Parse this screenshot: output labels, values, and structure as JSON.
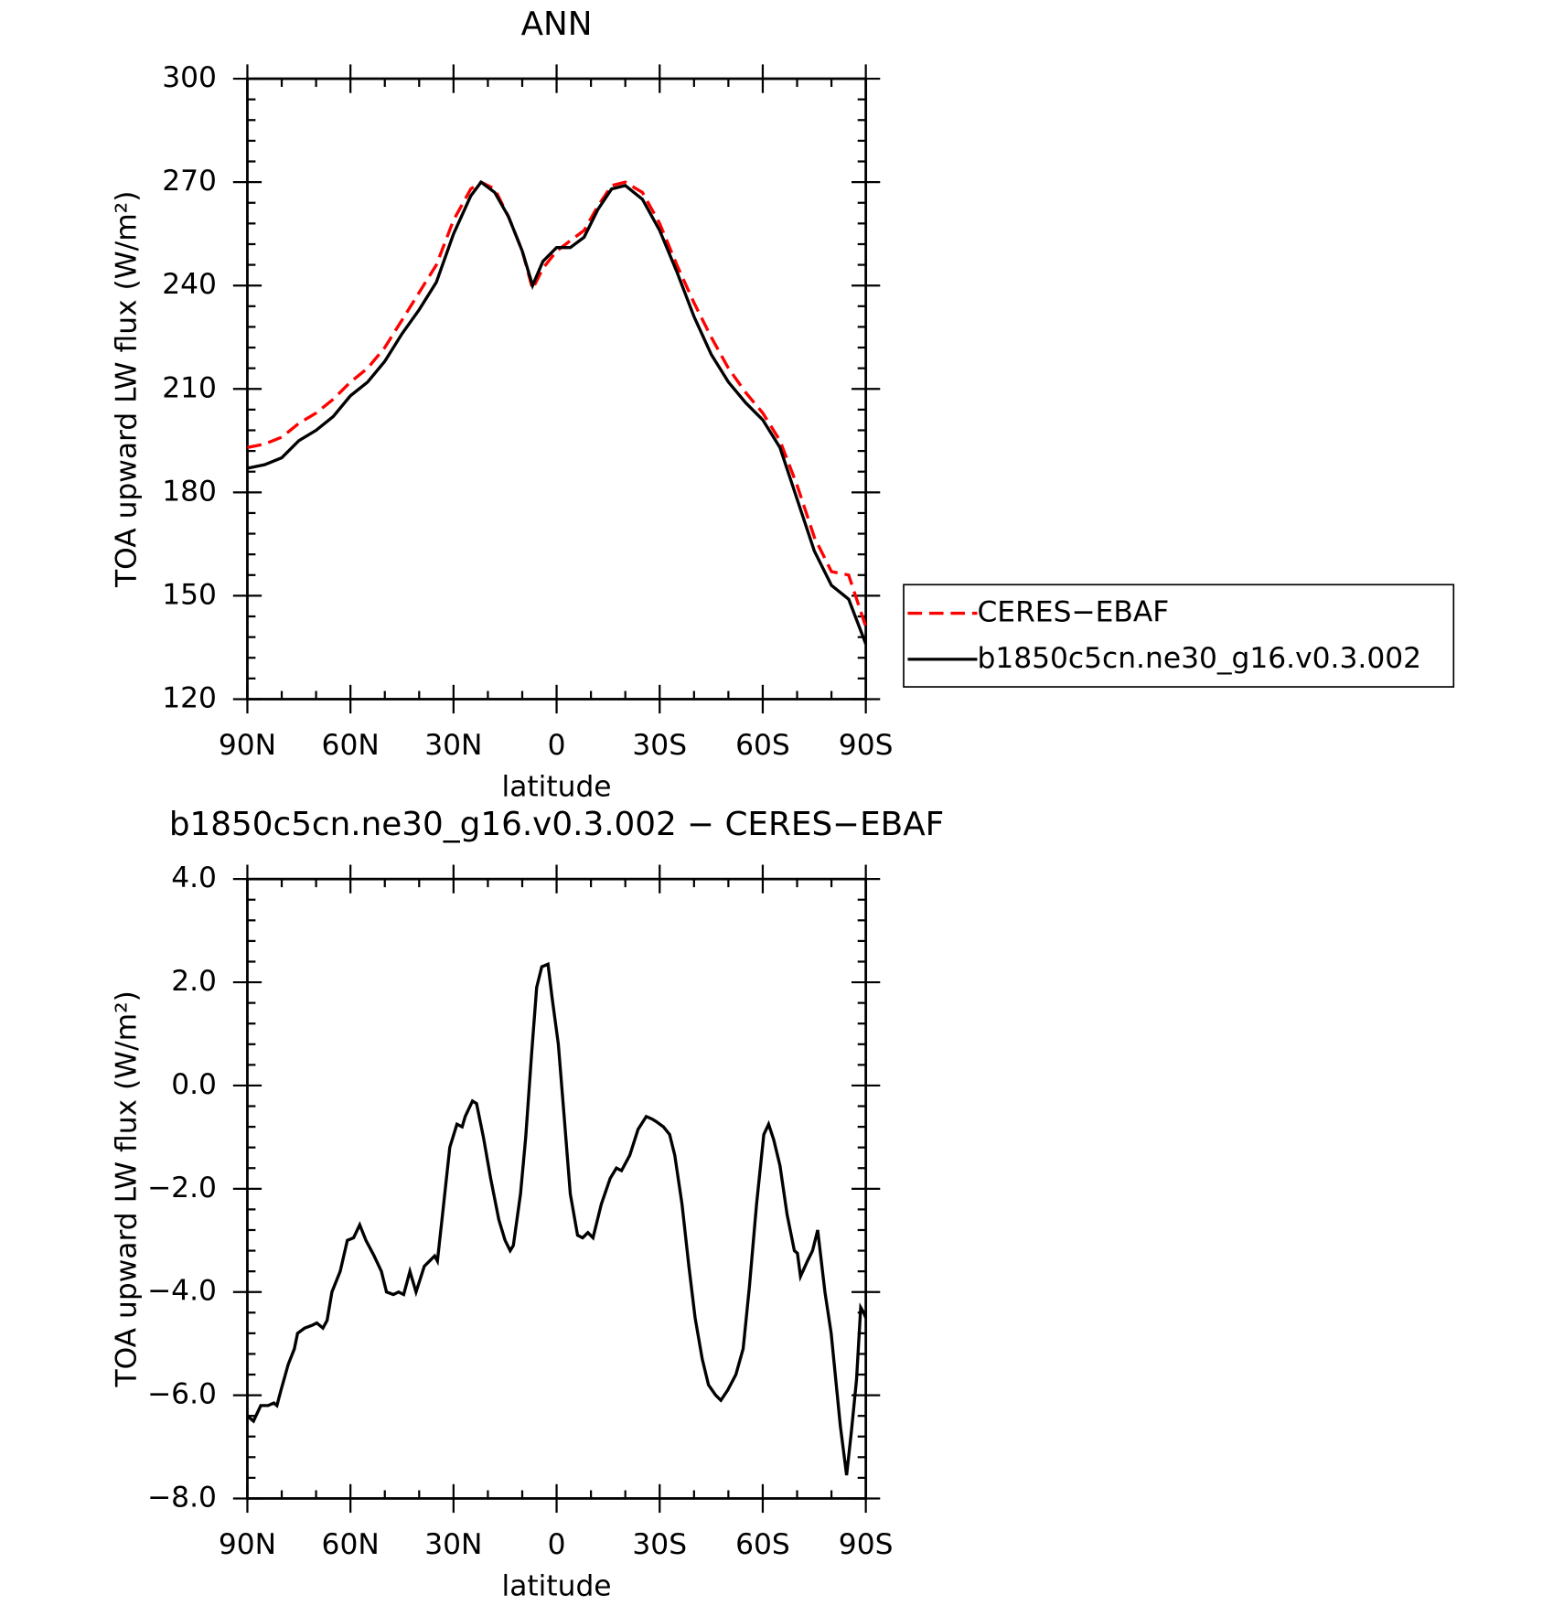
{
  "chart_data": [
    {
      "type": "line",
      "title": "ANN",
      "xlabel": "latitude",
      "ylabel": "TOA upward LW flux (W/m²)",
      "x": [
        90,
        85,
        80,
        75,
        70,
        65,
        60,
        55,
        50,
        45,
        40,
        35,
        30,
        25,
        22,
        18,
        14,
        10,
        7,
        4,
        0,
        -4,
        -8,
        -12,
        -16,
        -20,
        -25,
        -30,
        -35,
        -40,
        -45,
        -50,
        -55,
        -60,
        -65,
        -70,
        -75,
        -80,
        -85,
        -90
      ],
      "series": [
        {
          "name": "CERES−EBAF",
          "color": "#ff0000",
          "dash": "dashed",
          "values": [
            193,
            194,
            196,
            200,
            203,
            207,
            212,
            216,
            222,
            230,
            238,
            246,
            259,
            268,
            270,
            268,
            260,
            250,
            239,
            245,
            250,
            253,
            256,
            263,
            269,
            270,
            267,
            258,
            246,
            235,
            225,
            216,
            209,
            203,
            195,
            182,
            167,
            157,
            156,
            141
          ]
        },
        {
          "name": "b1850c5cn.ne30_g16.v0.3.002",
          "color": "#000000",
          "dash": "solid",
          "values": [
            187,
            188,
            190,
            195,
            198,
            202,
            208,
            212,
            218,
            226,
            233,
            241,
            255,
            266,
            270,
            267,
            260,
            250,
            240,
            247,
            251,
            251,
            254,
            262,
            268,
            269,
            265,
            256,
            244,
            231,
            220,
            212,
            206,
            201,
            193,
            178,
            163,
            153,
            149,
            136
          ]
        }
      ],
      "xlim": [
        90,
        -90
      ],
      "xticks": [
        {
          "value": 90,
          "label": "90N"
        },
        {
          "value": 60,
          "label": "60N"
        },
        {
          "value": 30,
          "label": "30N"
        },
        0,
        {
          "value": -30,
          "label": "30S"
        },
        {
          "value": -60,
          "label": "60S"
        },
        {
          "value": -90,
          "label": "90S"
        }
      ],
      "ylim": [
        120,
        300
      ],
      "yticks": [
        120,
        150,
        180,
        210,
        240,
        270,
        300
      ],
      "legend": "right"
    },
    {
      "type": "line",
      "title": "b1850c5cn.ne30_g16.v0.3.002 − CERES−EBAF",
      "xlabel": "latitude",
      "ylabel": "TOA upward LW flux (W/m²)",
      "x": [
        90,
        88.2,
        86.1,
        84,
        82.3,
        81.4,
        80.2,
        78.1,
        76.3,
        75.4,
        73.3,
        71.3,
        69.8,
        68,
        66.8,
        65.4,
        63,
        60.9,
        59.1,
        57.3,
        55.5,
        53.1,
        51,
        49.5,
        47.5,
        46,
        44.5,
        42.7,
        40.9,
        38.5,
        35.5,
        34.7,
        33.2,
        31.1,
        29,
        27.5,
        26.6,
        24.5,
        23.3,
        21.3,
        19.2,
        16.8,
        15,
        13.5,
        12.6,
        10.5,
        9,
        7.3,
        5.8,
        4.3,
        2.5,
        1.3,
        -0.5,
        -2.2,
        -4,
        -6.1,
        -7.6,
        -9.1,
        -10.6,
        -13,
        -15.6,
        -17.4,
        -18.9,
        -21.3,
        -23.7,
        -26.1,
        -27.8,
        -29,
        -31.1,
        -32.9,
        -34.4,
        -36.5,
        -38.5,
        -40.3,
        -42.4,
        -44.2,
        -46.3,
        -47.8,
        -49.8,
        -52.2,
        -54.3,
        -56.1,
        -58.2,
        -60.3,
        -61.7,
        -63.2,
        -65,
        -67.1,
        -69.2,
        -70.1,
        -71,
        -73,
        -74.5,
        -76,
        -78.1,
        -79.9,
        -81.4,
        -82.6,
        -84.4,
        -85.8,
        -87.3,
        -88.5,
        -89.4,
        -90
      ],
      "values": [
        -6.4,
        -6.5,
        -6.2,
        -6.2,
        -6.15,
        -6.2,
        -5.9,
        -5.4,
        -5.1,
        -4.8,
        -4.7,
        -4.65,
        -4.6,
        -4.7,
        -4.55,
        -4.0,
        -3.6,
        -3.0,
        -2.95,
        -2.7,
        -3.0,
        -3.3,
        -3.6,
        -4.0,
        -4.05,
        -4.0,
        -4.05,
        -3.6,
        -4.0,
        -3.5,
        -3.3,
        -3.4,
        -2.5,
        -1.2,
        -0.75,
        -0.8,
        -0.6,
        -0.3,
        -0.35,
        -1.0,
        -1.8,
        -2.6,
        -3.0,
        -3.2,
        -3.1,
        -2.1,
        -1.0,
        0.6,
        1.9,
        2.3,
        2.35,
        1.7,
        0.8,
        -0.6,
        -2.1,
        -2.9,
        -2.95,
        -2.85,
        -2.95,
        -2.3,
        -1.8,
        -1.6,
        -1.65,
        -1.35,
        -0.85,
        -0.6,
        -0.65,
        -0.7,
        -0.8,
        -0.95,
        -1.35,
        -2.3,
        -3.5,
        -4.5,
        -5.3,
        -5.8,
        -6.0,
        -6.1,
        -5.9,
        -5.6,
        -5.1,
        -3.9,
        -2.3,
        -0.95,
        -0.75,
        -1.05,
        -1.55,
        -2.5,
        -3.2,
        -3.25,
        -3.7,
        -3.4,
        -3.2,
        -2.8,
        -4.0,
        -4.8,
        -5.8,
        -6.6,
        -7.55,
        -6.7,
        -5.7,
        -4.3,
        -4.4,
        -4.5
      ],
      "color": "#000000",
      "xlim": [
        90,
        -90
      ],
      "xticks": [
        {
          "value": 90,
          "label": "90N"
        },
        {
          "value": 60,
          "label": "60N"
        },
        {
          "value": 30,
          "label": "30N"
        },
        0,
        {
          "value": -30,
          "label": "30S"
        },
        {
          "value": -60,
          "label": "60S"
        },
        {
          "value": -90,
          "label": "90S"
        }
      ],
      "ylim": [
        -8,
        4
      ],
      "yticks": [
        {
          "value": -8,
          "label": "−8.0"
        },
        {
          "value": -6,
          "label": "−6.0"
        },
        {
          "value": -4,
          "label": "−4.0"
        },
        {
          "value": -2,
          "label": "−2.0"
        },
        {
          "value": 0,
          "label": "0.0"
        },
        {
          "value": 2,
          "label": "2.0"
        },
        {
          "value": 4,
          "label": "4.0"
        }
      ]
    }
  ]
}
